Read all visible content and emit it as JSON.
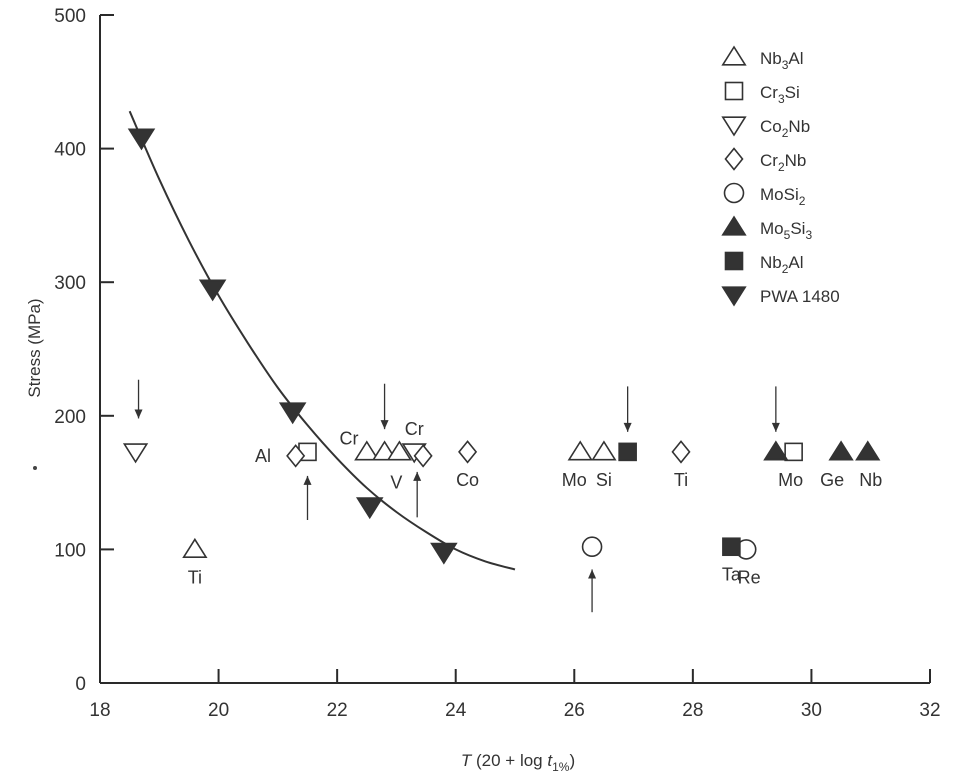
{
  "chart_data": {
    "type": "scatter",
    "title": "",
    "xlabel": "T (20 + log t1%)",
    "ylabel": "Stress (MPa)",
    "xlim": [
      18,
      32
    ],
    "ylim": [
      0,
      500
    ],
    "xticks": [
      18,
      20,
      22,
      24,
      26,
      28,
      30,
      32
    ],
    "yticks": [
      0,
      100,
      200,
      300,
      400,
      500
    ],
    "grid": false,
    "legend_position": "top-right",
    "legend": [
      {
        "name": "Nb3Al",
        "base": "Nb",
        "sub1": "3",
        "mid": "Al",
        "sub2": "",
        "marker": "triangle-up-open"
      },
      {
        "name": "Cr3Si",
        "base": "Cr",
        "sub1": "3",
        "mid": "Si",
        "sub2": "",
        "marker": "square-open"
      },
      {
        "name": "Co2Nb",
        "base": "Co",
        "sub1": "2",
        "mid": "Nb",
        "sub2": "",
        "marker": "triangle-down-open"
      },
      {
        "name": "Cr2Nb",
        "base": "Cr",
        "sub1": "2",
        "mid": "Nb",
        "sub2": "",
        "marker": "diamond-open"
      },
      {
        "name": "MoSi2",
        "base": "MoSi",
        "sub1": "2",
        "mid": "",
        "sub2": "",
        "marker": "circle-open"
      },
      {
        "name": "Mo5Si3",
        "base": "Mo",
        "sub1": "5",
        "mid": "Si",
        "sub2": "3",
        "marker": "triangle-up-filled"
      },
      {
        "name": "Nb2Al",
        "base": "Nb",
        "sub1": "2",
        "mid": "Al",
        "sub2": "",
        "marker": "square-filled"
      },
      {
        "name": "PWA 1480",
        "base": "PWA 1480",
        "sub1": "",
        "mid": "",
        "sub2": "",
        "marker": "triangle-down-filled"
      }
    ],
    "series": [
      {
        "name": "Nb3Al",
        "points": [
          [
            19.6,
            100
          ],
          [
            22.5,
            173
          ],
          [
            22.8,
            173
          ],
          [
            23.05,
            173
          ],
          [
            26.1,
            173
          ],
          [
            26.5,
            173
          ]
        ]
      },
      {
        "name": "Cr3Si",
        "points": [
          [
            21.5,
            173
          ],
          [
            29.7,
            173
          ]
        ]
      },
      {
        "name": "Co2Nb",
        "points": [
          [
            18.6,
            173
          ],
          [
            23.3,
            173
          ]
        ]
      },
      {
        "name": "Cr2Nb",
        "points": [
          [
            21.3,
            170
          ],
          [
            23.45,
            170
          ],
          [
            24.2,
            173
          ],
          [
            27.8,
            173
          ]
        ]
      },
      {
        "name": "MoSi2",
        "points": [
          [
            26.3,
            102
          ],
          [
            28.9,
            100
          ]
        ]
      },
      {
        "name": "Mo5Si3",
        "points": [
          [
            29.4,
            173
          ],
          [
            30.5,
            173
          ],
          [
            30.95,
            173
          ]
        ]
      },
      {
        "name": "Nb2Al",
        "points": [
          [
            26.9,
            173
          ],
          [
            28.65,
            102
          ]
        ]
      },
      {
        "name": "PWA 1480",
        "points": [
          [
            18.7,
            408
          ],
          [
            19.9,
            295
          ],
          [
            21.25,
            203
          ],
          [
            22.55,
            132
          ],
          [
            23.8,
            98
          ]
        ]
      }
    ],
    "fit_curve": [
      [
        18.5,
        428
      ],
      [
        19.0,
        377
      ],
      [
        19.5,
        331
      ],
      [
        20.0,
        290
      ],
      [
        20.5,
        254
      ],
      [
        21.0,
        221
      ],
      [
        21.5,
        193
      ],
      [
        22.0,
        168
      ],
      [
        22.5,
        146
      ],
      [
        23.0,
        128
      ],
      [
        23.5,
        113
      ],
      [
        24.0,
        100
      ],
      [
        24.5,
        91
      ],
      [
        25.0,
        85
      ]
    ],
    "point_labels": [
      {
        "text": "Ti",
        "x": 19.6,
        "y": 100,
        "pos": "below"
      },
      {
        "text": "Al",
        "x": 20.75,
        "y": 170,
        "pos": "center"
      },
      {
        "text": "Cr",
        "x": 22.2,
        "y": 183,
        "pos": "center"
      },
      {
        "text": "Cr",
        "x": 23.3,
        "y": 190,
        "pos": "center"
      },
      {
        "text": "V",
        "x": 23.0,
        "y": 150,
        "pos": "center"
      },
      {
        "text": "Co",
        "x": 24.2,
        "y": 173,
        "pos": "below"
      },
      {
        "text": "Mo",
        "x": 26.0,
        "y": 173,
        "pos": "below"
      },
      {
        "text": "Si",
        "x": 26.5,
        "y": 173,
        "pos": "below"
      },
      {
        "text": "Ti",
        "x": 27.8,
        "y": 173,
        "pos": "below"
      },
      {
        "text": "Mo",
        "x": 29.65,
        "y": 173,
        "pos": "below"
      },
      {
        "text": "Ge",
        "x": 30.35,
        "y": 173,
        "pos": "below"
      },
      {
        "text": "Nb",
        "x": 31.0,
        "y": 173,
        "pos": "below"
      },
      {
        "text": "Ta",
        "x": 28.65,
        "y": 102,
        "pos": "below"
      },
      {
        "text": "Re",
        "x": 28.95,
        "y": 100,
        "pos": "below"
      }
    ],
    "arrows": [
      {
        "x": 18.65,
        "from": 227,
        "to": 198,
        "dir": "down"
      },
      {
        "x": 22.8,
        "from": 224,
        "to": 190,
        "dir": "down"
      },
      {
        "x": 26.9,
        "from": 222,
        "to": 188,
        "dir": "down"
      },
      {
        "x": 29.4,
        "from": 222,
        "to": 188,
        "dir": "down"
      },
      {
        "x": 21.5,
        "from": 122,
        "to": 155,
        "dir": "up"
      },
      {
        "x": 23.35,
        "from": 124,
        "to": 158,
        "dir": "up"
      },
      {
        "x": 26.3,
        "from": 53,
        "to": 85,
        "dir": "up"
      }
    ]
  }
}
